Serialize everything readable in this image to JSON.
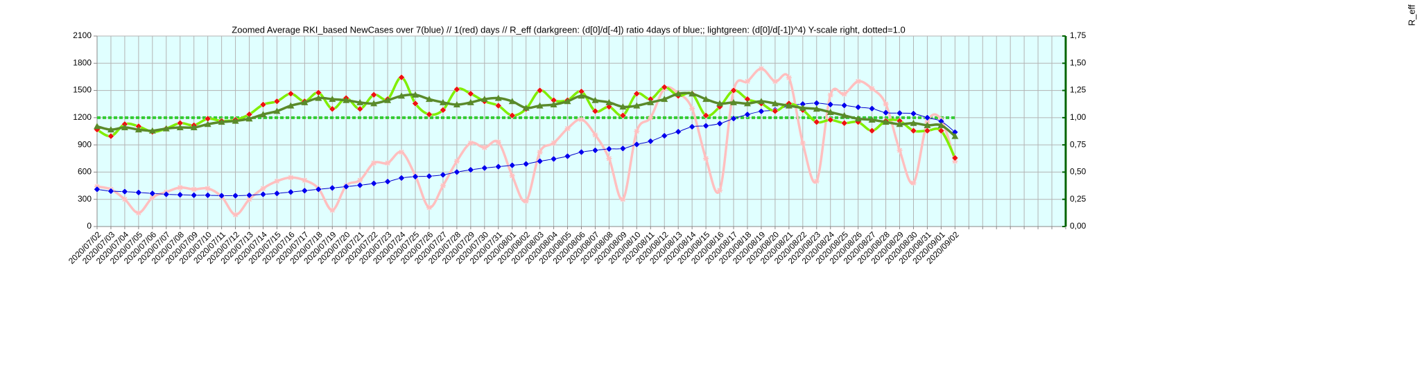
{
  "chart_data": {
    "type": "line",
    "title": "Zoomed Average RKI_based NewCases over 7(blue) // 1(red) days //  R_eff (darkgreen: (d[0]/d[-4]) ratio 4days of blue;; lightgreen: (d[0]/d[-1])^4) Y-scale right, dotted=1.0",
    "y2_label": "R_eff",
    "categories": [
      "2020/07/02",
      "2020/07/03",
      "2020/07/04",
      "2020/07/05",
      "2020/07/06",
      "2020/07/07",
      "2020/07/08",
      "2020/07/09",
      "2020/07/10",
      "2020/07/11",
      "2020/07/12",
      "2020/07/13",
      "2020/07/14",
      "2020/07/15",
      "2020/07/16",
      "2020/07/17",
      "2020/07/18",
      "2020/07/19",
      "2020/07/20",
      "2020/07/21",
      "2020/07/22",
      "2020/07/23",
      "2020/07/24",
      "2020/07/25",
      "2020/07/26",
      "2020/07/27",
      "2020/07/28",
      "2020/07/29",
      "2020/07/30",
      "2020/07/31",
      "2020/08/01",
      "2020/08/02",
      "2020/08/03",
      "2020/08/04",
      "2020/08/05",
      "2020/08/06",
      "2020/08/07",
      "2020/08/08",
      "2020/08/09",
      "2020/08/10",
      "2020/08/11",
      "2020/08/12",
      "2020/08/13",
      "2020/08/14",
      "2020/08/15",
      "2020/08/16",
      "2020/08/17",
      "2020/08/18",
      "2020/08/19",
      "2020/08/20",
      "2020/08/21",
      "2020/08/22",
      "2020/08/23",
      "2020/08/24",
      "2020/08/25",
      "2020/08/26",
      "2020/08/27",
      "2020/08/28",
      "2020/08/29",
      "2020/08/30",
      "2020/08/31",
      "2020/09/01",
      "2020/09/02",
      null,
      null,
      null,
      null,
      null,
      null,
      null,
      null
    ],
    "ylim": [
      0,
      2100
    ],
    "yticks": [
      0,
      300,
      600,
      900,
      1200,
      1500,
      1800,
      2100
    ],
    "y2lim": [
      0,
      1.75
    ],
    "y2ticks": [
      {
        "value": 0,
        "label": "0,00"
      },
      {
        "value": 0.25,
        "label": "0,25"
      },
      {
        "value": 0.5,
        "label": "0,50"
      },
      {
        "value": 0.75,
        "label": "0,75"
      },
      {
        "value": 1,
        "label": "1,00"
      },
      {
        "value": 1.25,
        "label": "1,25"
      },
      {
        "value": 1.5,
        "label": "1,50"
      },
      {
        "value": 1.75,
        "label": "1,75"
      }
    ],
    "reference_line": {
      "axis": "y2",
      "value": 1.0,
      "color": "#33cc33"
    },
    "grid": true,
    "background": "#e0ffff",
    "series": [
      {
        "color": "#ffbfbf",
        "marker": "star",
        "marker_color": "#ffbfbf",
        "width": 3.5,
        "axis": "y",
        "values": [
          440,
          410,
          300,
          150,
          320,
          380,
          430,
          410,
          420,
          330,
          130,
          300,
          420,
          500,
          540,
          510,
          420,
          180,
          450,
          510,
          700,
          700,
          820,
          560,
          210,
          450,
          720,
          920,
          870,
          930,
          560,
          280,
          820,
          920,
          1080,
          1180,
          1010,
          750,
          300,
          1050,
          1200,
          1520,
          1470,
          1300,
          750,
          400,
          1500,
          1600,
          1740,
          1600,
          1640,
          920,
          500,
          1450,
          1460,
          1600,
          1520,
          1350,
          840,
          480,
          1150,
          1180,
          720,
          null,
          null,
          null,
          null,
          null,
          null,
          null,
          null
        ]
      },
      {
        "color": "#0000cc",
        "marker": "diamond",
        "marker_color": "#0000ee",
        "width": 1,
        "axis": "y",
        "values": [
          410,
          390,
          385,
          375,
          365,
          355,
          350,
          345,
          345,
          340,
          340,
          345,
          355,
          365,
          380,
          395,
          410,
          425,
          440,
          455,
          475,
          495,
          535,
          550,
          555,
          570,
          600,
          625,
          645,
          660,
          675,
          690,
          720,
          745,
          775,
          820,
          840,
          855,
          860,
          905,
          940,
          1000,
          1045,
          1100,
          1110,
          1135,
          1190,
          1235,
          1270,
          1285,
          1330,
          1350,
          1360,
          1345,
          1335,
          1315,
          1300,
          1255,
          1250,
          1245,
          1200,
          1160,
          1040,
          null,
          null,
          null,
          null,
          null,
          null,
          null,
          null
        ]
      },
      {
        "color": "#80ee00",
        "marker": "diamond",
        "marker_color": "#ee1111",
        "width": 3.5,
        "axis": "y2",
        "values": [
          0.89,
          0.83,
          0.94,
          0.92,
          0.87,
          0.9,
          0.95,
          0.93,
          0.99,
          0.97,
          0.98,
          1.03,
          1.12,
          1.15,
          1.22,
          1.15,
          1.23,
          1.08,
          1.18,
          1.08,
          1.21,
          1.17,
          1.37,
          1.13,
          1.03,
          1.07,
          1.26,
          1.22,
          1.15,
          1.11,
          1.02,
          1.08,
          1.25,
          1.16,
          1.16,
          1.24,
          1.06,
          1.1,
          1.02,
          1.22,
          1.17,
          1.28,
          1.2,
          1.22,
          1.02,
          1.1,
          1.25,
          1.17,
          1.13,
          1.06,
          1.13,
          1.07,
          0.96,
          0.98,
          0.95,
          0.96,
          0.88,
          0.97,
          0.97,
          0.88,
          0.88,
          0.88,
          0.63,
          null,
          null,
          null,
          null,
          null,
          null,
          null,
          null
        ]
      },
      {
        "color": "#5a8a2a",
        "marker": "triangle",
        "marker_color": "#5a8a2a",
        "width": 3.5,
        "axis": "y2",
        "values": [
          0.92,
          0.89,
          0.91,
          0.89,
          0.88,
          0.9,
          0.91,
          0.91,
          0.94,
          0.96,
          0.97,
          0.99,
          1.03,
          1.06,
          1.11,
          1.14,
          1.18,
          1.17,
          1.16,
          1.14,
          1.13,
          1.16,
          1.2,
          1.21,
          1.17,
          1.14,
          1.12,
          1.14,
          1.17,
          1.18,
          1.15,
          1.09,
          1.11,
          1.12,
          1.15,
          1.2,
          1.16,
          1.14,
          1.1,
          1.11,
          1.14,
          1.17,
          1.22,
          1.22,
          1.17,
          1.13,
          1.14,
          1.13,
          1.15,
          1.13,
          1.11,
          1.09,
          1.08,
          1.05,
          1.02,
          0.99,
          0.98,
          0.96,
          0.94,
          0.95,
          0.93,
          0.93,
          0.83,
          null,
          null,
          null,
          null,
          null,
          null,
          null,
          null
        ]
      }
    ]
  }
}
